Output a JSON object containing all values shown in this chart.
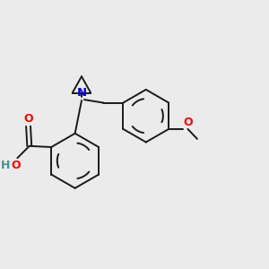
{
  "bg_color": "#ebebeb",
  "bond_color": "#1a1a1a",
  "n_color": "#0000cd",
  "o_color": "#ff0000",
  "h_color": "#4a9090",
  "line_width": 1.4,
  "figsize": [
    3.0,
    3.0
  ],
  "dpi": 100,
  "xlim": [
    0,
    12
  ],
  "ylim": [
    0,
    12
  ]
}
